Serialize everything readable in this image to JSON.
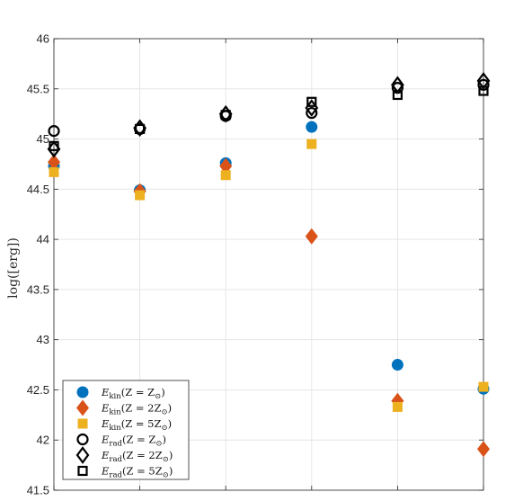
{
  "chart_data": {
    "type": "scatter",
    "title": "",
    "xlabel": "",
    "ylabel": "log([erg])",
    "ylim": [
      41.5,
      46
    ],
    "xlim": [
      1,
      6
    ],
    "x_ticks_labeled": false,
    "y_ticks": [
      "41.5",
      "42",
      "42.5",
      "43",
      "43.5",
      "44",
      "44.5",
      "45",
      "45.5",
      "46"
    ],
    "grid": true,
    "legend_position": "bottom-left",
    "series": [
      {
        "name": "E_kin(Z = Z☉)",
        "legend": {
          "sym": "E",
          "sub": "kin",
          "mid": "(Z = Z",
          "sub2": "⊙",
          "end": ")"
        },
        "marker": "filled-circle",
        "color": "#0072BD",
        "x": [
          1,
          2,
          3,
          4,
          5,
          6
        ],
        "y": [
          44.73,
          44.49,
          44.76,
          45.12,
          42.75,
          42.51
        ]
      },
      {
        "name": "E_kin(Z = 2Z☉)",
        "legend": {
          "sym": "E",
          "sub": "kin",
          "mid": "(Z = 2Z",
          "sub2": "⊙",
          "end": ")"
        },
        "marker": "filled-diamond",
        "color": "#D95319",
        "x": [
          1,
          2,
          3,
          4,
          5,
          6
        ],
        "y": [
          44.77,
          44.48,
          44.73,
          44.03,
          42.39,
          41.91
        ]
      },
      {
        "name": "E_kin(Z = 5Z☉)",
        "legend": {
          "sym": "E",
          "sub": "kin",
          "mid": "(Z = 5Z",
          "sub2": "⊙",
          "end": ")"
        },
        "marker": "filled-square",
        "color": "#EDB120",
        "x": [
          1,
          2,
          3,
          4,
          5,
          6
        ],
        "y": [
          44.67,
          44.44,
          44.64,
          44.95,
          42.33,
          42.53
        ]
      },
      {
        "name": "E_rad(Z = Z☉)",
        "legend": {
          "sym": "E",
          "sub": "rad",
          "mid": "(Z = Z",
          "sub2": "⊙",
          "end": ")"
        },
        "marker": "open-circle",
        "color": "#000000",
        "x": [
          1,
          2,
          3,
          4,
          5,
          6
        ],
        "y": [
          45.08,
          45.1,
          45.23,
          45.26,
          45.51,
          45.54
        ]
      },
      {
        "name": "E_rad(Z = 2Z☉)",
        "legend": {
          "sym": "E",
          "sub": "rad",
          "mid": "(Z = 2Z",
          "sub2": "⊙",
          "end": ")"
        },
        "marker": "open-diamond",
        "color": "#000000",
        "x": [
          1,
          2,
          3,
          4,
          5,
          6
        ],
        "y": [
          44.9,
          45.11,
          45.25,
          45.31,
          45.54,
          45.58
        ]
      },
      {
        "name": "E_rad(Z = 5Z☉)",
        "legend": {
          "sym": "E",
          "sub": "rad",
          "mid": "(Z = 5Z",
          "sub2": "⊙",
          "end": ")"
        },
        "marker": "open-square",
        "color": "#000000",
        "x": [
          1,
          2,
          3,
          4,
          5,
          6
        ],
        "y": [
          44.93,
          45.1,
          45.24,
          45.37,
          45.44,
          45.48
        ]
      }
    ]
  }
}
